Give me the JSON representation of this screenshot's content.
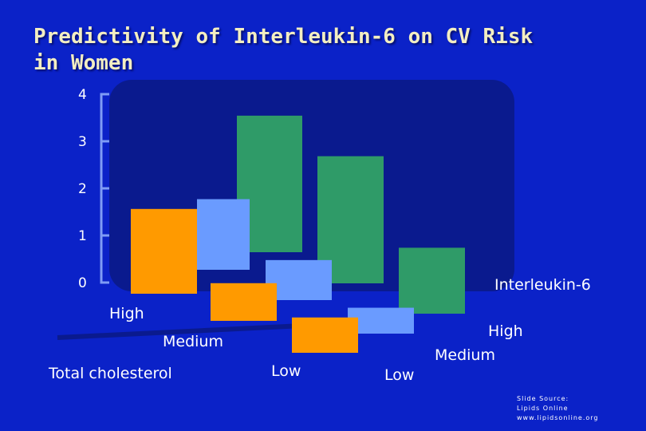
{
  "title_lines": [
    "Predictivity of Interleukin-6 on CV Risk",
    "in Women"
  ],
  "source_lines": [
    "Slide Source:",
    "Lipids Online",
    "www.lipidsonline.org"
  ],
  "colors": {
    "background": "#0b22c8",
    "panel": "#0a1a8e",
    "axis": "#7f9cf5",
    "orange": "#ff9a00",
    "light_blue": "#6a9bff",
    "green": "#2f9b68"
  },
  "chart_data": {
    "type": "bar",
    "style": "3d-bar",
    "ylim": [
      0,
      4
    ],
    "yticks": [
      "0",
      "1",
      "2",
      "3",
      "4"
    ],
    "depth_axis_label": "Interleukin-6",
    "x_axis_label": "Total cholesterol",
    "categories_total_cholesterol": [
      "High",
      "Medium",
      "Low"
    ],
    "categories_interleukin6": [
      "Low",
      "Medium",
      "High"
    ],
    "series": [
      {
        "interleukin6": "Low",
        "color": "orange",
        "values": [
          1.8,
          0.8,
          0.75
        ]
      },
      {
        "interleukin6": "Medium",
        "color": "light_blue",
        "values": [
          1.5,
          0.85,
          0.55
        ]
      },
      {
        "interleukin6": "High",
        "color": "green",
        "values": [
          2.9,
          2.7,
          1.4
        ]
      }
    ]
  }
}
